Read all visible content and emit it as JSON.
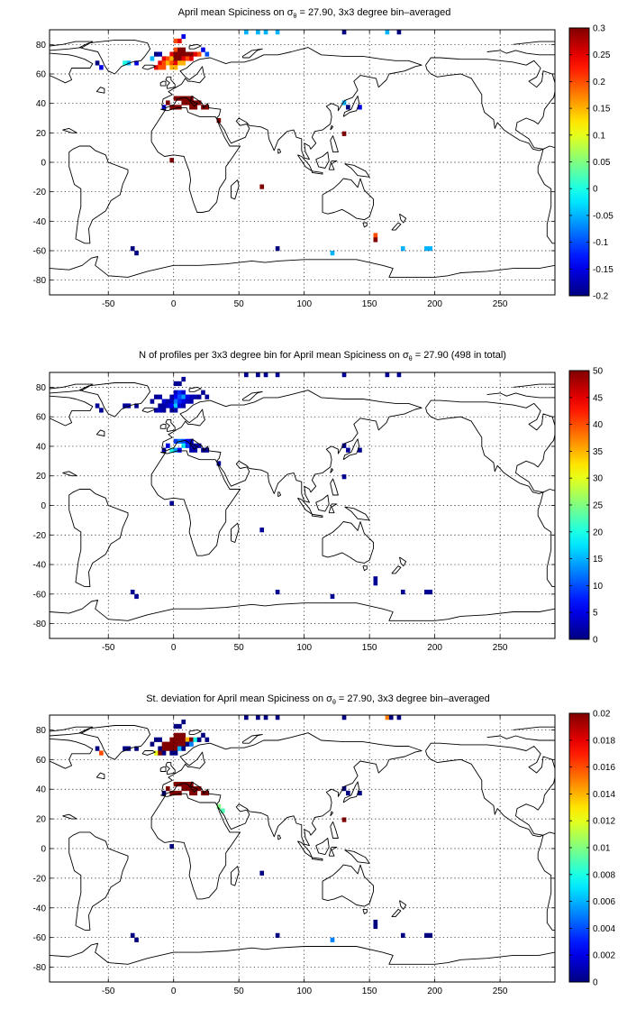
{
  "charts": [
    {
      "title_parts": [
        "April mean Spiciness on ",
        "σ",
        "θ",
        " = 27.90, 3x3 degree bin–averaged"
      ],
      "colorbar": {
        "min": -0.2,
        "max": 0.3,
        "ticks": [
          "0.3",
          "0.25",
          "0.2",
          "0.15",
          "0.1",
          "0.05",
          "0",
          "-0.05",
          "-0.1",
          "-0.15",
          "-0.2"
        ]
      }
    },
    {
      "title_parts": [
        "N of profiles per 3x3 degree bin for April mean Spiciness on ",
        "σ",
        "θ",
        " = 27.90 (498 in total)"
      ],
      "colorbar": {
        "min": 0,
        "max": 50,
        "ticks": [
          "50",
          "45",
          "40",
          "35",
          "30",
          "25",
          "20",
          "15",
          "10",
          "5",
          "0"
        ]
      }
    },
    {
      "title_parts": [
        "St. deviation for April mean Spiciness on ",
        "σ",
        "θ",
        " = 27.90, 3x3 degree bin–averaged"
      ],
      "colorbar": {
        "min": 0,
        "max": 0.02,
        "ticks": [
          "0.02",
          "0.018",
          "0.016",
          "0.014",
          "0.012",
          "0.01",
          "0.008",
          "0.006",
          "0.004",
          "0.002",
          "0"
        ]
      }
    }
  ],
  "chart_data": [
    {
      "type": "heatmap",
      "title": "April mean Spiciness on σθ = 27.90, 3x3 degree bin–averaged",
      "xlabel": "",
      "ylabel": "",
      "xlim": [
        -95,
        292
      ],
      "ylim": [
        -90,
        90
      ],
      "xticks": [
        -50,
        0,
        50,
        100,
        150,
        200,
        250
      ],
      "yticks": [
        80,
        60,
        40,
        20,
        0,
        -20,
        -40,
        -60,
        -80
      ],
      "grid": true,
      "colormap": "jet",
      "clim": [
        -0.2,
        0.3
      ],
      "cells": [
        [
          0,
          75,
          0.2
        ],
        [
          3,
          75,
          0.3
        ],
        [
          6,
          75,
          0.3
        ],
        [
          -3,
          72,
          0.25
        ],
        [
          0,
          72,
          0.3
        ],
        [
          3,
          72,
          0.3
        ],
        [
          6,
          72,
          0.3
        ],
        [
          9,
          72,
          0.3
        ],
        [
          12,
          72,
          0.3
        ],
        [
          15,
          72,
          0.25
        ],
        [
          18,
          72,
          0.2
        ],
        [
          -9,
          69,
          0.25
        ],
        [
          -6,
          69,
          0.2
        ],
        [
          -3,
          69,
          0.15
        ],
        [
          0,
          69,
          0.3
        ],
        [
          3,
          69,
          0.3
        ],
        [
          6,
          69,
          0.25
        ],
        [
          9,
          69,
          0.2
        ],
        [
          12,
          69,
          0.25
        ],
        [
          -12,
          66,
          0.25
        ],
        [
          -9,
          66,
          0.2
        ],
        [
          -6,
          66,
          0.15
        ],
        [
          -3,
          66,
          0.2
        ],
        [
          0,
          66,
          0.25
        ],
        [
          3,
          66,
          0.15
        ],
        [
          6,
          66,
          0.15
        ],
        [
          -15,
          63,
          0.25
        ],
        [
          -12,
          63,
          0.2
        ],
        [
          -9,
          63,
          0.2
        ],
        [
          -3,
          63,
          0.15
        ],
        [
          0,
          63,
          0.15
        ],
        [
          -15,
          72,
          -0.2
        ],
        [
          -12,
          72,
          -0.18
        ],
        [
          21,
          75,
          -0.15
        ],
        [
          24,
          72,
          -0.1
        ],
        [
          -18,
          69,
          -0.05
        ],
        [
          -30,
          66,
          -0.15
        ],
        [
          -36,
          66,
          -0.05
        ],
        [
          -39,
          66,
          0.0
        ],
        [
          -57,
          63,
          -0.15
        ],
        [
          -60,
          66,
          -0.2
        ],
        [
          0,
          81,
          0.2
        ],
        [
          3,
          81,
          0.25
        ],
        [
          6,
          84,
          -0.15
        ],
        [
          0,
          42,
          0.3
        ],
        [
          3,
          42,
          0.3
        ],
        [
          6,
          42,
          0.3
        ],
        [
          9,
          42,
          0.3
        ],
        [
          12,
          42,
          0.3
        ],
        [
          6,
          39,
          0.3
        ],
        [
          9,
          39,
          0.3
        ],
        [
          12,
          39,
          0.3
        ],
        [
          15,
          39,
          0.3
        ],
        [
          18,
          39,
          0.3
        ],
        [
          -3,
          36,
          0.3
        ],
        [
          0,
          36,
          0.3
        ],
        [
          3,
          36,
          0.3
        ],
        [
          12,
          36,
          0.3
        ],
        [
          15,
          36,
          0.3
        ],
        [
          21,
          36,
          0.3
        ],
        [
          24,
          36,
          0.3
        ],
        [
          -6,
          39,
          0.3
        ],
        [
          -9,
          36,
          -0.15
        ],
        [
          33,
          27,
          0.3
        ],
        [
          -3,
          0,
          0.3
        ],
        [
          66,
          -18,
          0.3
        ],
        [
          129,
          39,
          -0.05
        ],
        [
          132,
          36,
          -0.2
        ],
        [
          141,
          36,
          -0.15
        ],
        [
          129,
          18,
          0.3
        ],
        [
          54,
          87,
          -0.05
        ],
        [
          63,
          87,
          -0.05
        ],
        [
          69,
          87,
          -0.05
        ],
        [
          78,
          87,
          -0.05
        ],
        [
          129,
          87,
          -0.2
        ],
        [
          162,
          87,
          -0.05
        ],
        [
          171,
          87,
          -0.2
        ],
        [
          -33,
          -60,
          -0.2
        ],
        [
          -30,
          -63,
          -0.2
        ],
        [
          78,
          -60,
          -0.2
        ],
        [
          120,
          -63,
          -0.05
        ],
        [
          153,
          -51,
          0.2
        ],
        [
          153,
          -54,
          0.3
        ],
        [
          174,
          -60,
          -0.05
        ],
        [
          192,
          -60,
          -0.05
        ],
        [
          195,
          -60,
          -0.05
        ]
      ]
    },
    {
      "type": "heatmap",
      "title": "N of profiles per 3x3 degree bin for April mean Spiciness on σθ = 27.90 (498 in total)",
      "xlabel": "",
      "ylabel": "",
      "xlim": [
        -95,
        292
      ],
      "ylim": [
        -90,
        90
      ],
      "xticks": [
        -50,
        0,
        50,
        100,
        150,
        200,
        250
      ],
      "yticks": [
        80,
        60,
        40,
        20,
        0,
        -20,
        -40,
        -60,
        -80
      ],
      "grid": true,
      "colormap": "jet",
      "clim": [
        0,
        50
      ],
      "cells": [
        [
          0,
          75,
          3
        ],
        [
          3,
          75,
          8
        ],
        [
          6,
          75,
          4
        ],
        [
          -3,
          72,
          2
        ],
        [
          0,
          72,
          6
        ],
        [
          3,
          72,
          10
        ],
        [
          6,
          72,
          14
        ],
        [
          9,
          72,
          5
        ],
        [
          12,
          72,
          3
        ],
        [
          15,
          72,
          2
        ],
        [
          18,
          72,
          1
        ],
        [
          -9,
          69,
          4
        ],
        [
          -6,
          69,
          2
        ],
        [
          -3,
          69,
          3
        ],
        [
          0,
          69,
          12
        ],
        [
          3,
          69,
          8
        ],
        [
          6,
          69,
          5
        ],
        [
          9,
          69,
          3
        ],
        [
          12,
          69,
          2
        ],
        [
          -12,
          66,
          1
        ],
        [
          -9,
          66,
          2
        ],
        [
          -6,
          66,
          3
        ],
        [
          -3,
          66,
          6
        ],
        [
          0,
          66,
          16
        ],
        [
          3,
          66,
          4
        ],
        [
          6,
          66,
          2
        ],
        [
          -15,
          63,
          2
        ],
        [
          -12,
          63,
          3
        ],
        [
          -9,
          63,
          1
        ],
        [
          -3,
          63,
          1
        ],
        [
          0,
          63,
          2
        ],
        [
          -15,
          72,
          1
        ],
        [
          -12,
          72,
          2
        ],
        [
          21,
          75,
          1
        ],
        [
          24,
          72,
          1
        ],
        [
          -18,
          69,
          1
        ],
        [
          -30,
          66,
          1
        ],
        [
          -36,
          66,
          2
        ],
        [
          -39,
          66,
          1
        ],
        [
          -57,
          63,
          1
        ],
        [
          -60,
          66,
          1
        ],
        [
          0,
          81,
          1
        ],
        [
          3,
          81,
          1
        ],
        [
          6,
          84,
          1
        ],
        [
          0,
          42,
          9
        ],
        [
          3,
          42,
          12
        ],
        [
          6,
          42,
          10
        ],
        [
          9,
          42,
          6
        ],
        [
          12,
          42,
          3
        ],
        [
          6,
          39,
          18
        ],
        [
          9,
          39,
          9
        ],
        [
          12,
          39,
          4
        ],
        [
          15,
          39,
          3
        ],
        [
          18,
          39,
          2
        ],
        [
          -3,
          36,
          20
        ],
        [
          0,
          36,
          14
        ],
        [
          3,
          36,
          6
        ],
        [
          12,
          36,
          2
        ],
        [
          15,
          36,
          2
        ],
        [
          21,
          36,
          1
        ],
        [
          24,
          36,
          1
        ],
        [
          -6,
          39,
          5
        ],
        [
          -9,
          36,
          2
        ],
        [
          33,
          27,
          1
        ],
        [
          -3,
          0,
          1
        ],
        [
          66,
          -18,
          1
        ],
        [
          129,
          39,
          1
        ],
        [
          132,
          36,
          1
        ],
        [
          141,
          36,
          1
        ],
        [
          129,
          18,
          1
        ],
        [
          54,
          87,
          1
        ],
        [
          63,
          87,
          1
        ],
        [
          69,
          87,
          1
        ],
        [
          78,
          87,
          1
        ],
        [
          129,
          87,
          1
        ],
        [
          162,
          87,
          1
        ],
        [
          171,
          87,
          1
        ],
        [
          -33,
          -60,
          1
        ],
        [
          -30,
          -63,
          1
        ],
        [
          78,
          -60,
          1
        ],
        [
          120,
          -63,
          1
        ],
        [
          153,
          -51,
          1
        ],
        [
          153,
          -54,
          1
        ],
        [
          174,
          -60,
          1
        ],
        [
          192,
          -60,
          1
        ],
        [
          195,
          -60,
          1
        ]
      ]
    },
    {
      "type": "heatmap",
      "title": "St. deviation for April mean Spiciness on σθ = 27.90, 3x3 degree bin–averaged",
      "xlabel": "",
      "ylabel": "",
      "xlim": [
        -95,
        292
      ],
      "ylim": [
        -90,
        90
      ],
      "xticks": [
        -50,
        0,
        50,
        100,
        150,
        200,
        250
      ],
      "yticks": [
        80,
        60,
        40,
        20,
        0,
        -20,
        -40,
        -60,
        -80
      ],
      "grid": true,
      "colormap": "jet",
      "clim": [
        0,
        0.02
      ],
      "cells": [
        [
          0,
          75,
          0.02
        ],
        [
          3,
          75,
          0.02
        ],
        [
          6,
          75,
          0.02
        ],
        [
          -3,
          72,
          0.02
        ],
        [
          0,
          72,
          0.02
        ],
        [
          3,
          72,
          0.02
        ],
        [
          6,
          72,
          0.02
        ],
        [
          9,
          72,
          0.014
        ],
        [
          12,
          72,
          0.02
        ],
        [
          15,
          72,
          0.008
        ],
        [
          18,
          72,
          0.0
        ],
        [
          -9,
          69,
          0.02
        ],
        [
          -6,
          69,
          0.02
        ],
        [
          -3,
          69,
          0.02
        ],
        [
          0,
          69,
          0.02
        ],
        [
          3,
          69,
          0.02
        ],
        [
          6,
          69,
          0.02
        ],
        [
          9,
          69,
          0.0
        ],
        [
          12,
          69,
          0.005
        ],
        [
          -12,
          66,
          0.0
        ],
        [
          -9,
          66,
          0.02
        ],
        [
          -6,
          66,
          0.02
        ],
        [
          -3,
          66,
          0.02
        ],
        [
          0,
          66,
          0.02
        ],
        [
          3,
          66,
          0.006
        ],
        [
          6,
          66,
          0.0
        ],
        [
          -15,
          63,
          0.012
        ],
        [
          -12,
          63,
          0.02
        ],
        [
          -9,
          63,
          0.0
        ],
        [
          -3,
          63,
          0.0
        ],
        [
          0,
          63,
          0.0
        ],
        [
          -15,
          72,
          0.0
        ],
        [
          -12,
          72,
          0.0
        ],
        [
          21,
          75,
          0.0
        ],
        [
          24,
          72,
          0.0
        ],
        [
          -18,
          69,
          0.0
        ],
        [
          -30,
          66,
          0.0
        ],
        [
          -36,
          66,
          0.0
        ],
        [
          -39,
          66,
          0.0
        ],
        [
          -57,
          63,
          0.016
        ],
        [
          -60,
          66,
          0.0
        ],
        [
          0,
          81,
          0.0
        ],
        [
          3,
          81,
          0.0
        ],
        [
          6,
          84,
          0.0
        ],
        [
          0,
          42,
          0.02
        ],
        [
          3,
          42,
          0.02
        ],
        [
          6,
          42,
          0.02
        ],
        [
          9,
          42,
          0.02
        ],
        [
          12,
          42,
          0.02
        ],
        [
          6,
          39,
          0.02
        ],
        [
          9,
          39,
          0.02
        ],
        [
          12,
          39,
          0.02
        ],
        [
          15,
          39,
          0.02
        ],
        [
          18,
          39,
          0.02
        ],
        [
          -3,
          36,
          0.02
        ],
        [
          0,
          36,
          0.02
        ],
        [
          3,
          36,
          0.02
        ],
        [
          12,
          36,
          0.02
        ],
        [
          15,
          36,
          0.02
        ],
        [
          21,
          36,
          0.02
        ],
        [
          24,
          36,
          0.02
        ],
        [
          -6,
          39,
          0.02
        ],
        [
          -9,
          36,
          0.0
        ],
        [
          33,
          27,
          0.01
        ],
        [
          36,
          24,
          0.009
        ],
        [
          -3,
          0,
          0.0
        ],
        [
          66,
          -18,
          0.0
        ],
        [
          129,
          39,
          0.0
        ],
        [
          132,
          36,
          0.0
        ],
        [
          141,
          36,
          0.0
        ],
        [
          129,
          18,
          0.02
        ],
        [
          54,
          87,
          0.0
        ],
        [
          63,
          87,
          0.0
        ],
        [
          69,
          87,
          0.0
        ],
        [
          78,
          87,
          0.0
        ],
        [
          129,
          87,
          0.0
        ],
        [
          162,
          87,
          0.015
        ],
        [
          165,
          87,
          0.0
        ],
        [
          171,
          87,
          0.0
        ],
        [
          -33,
          -60,
          0.0
        ],
        [
          -30,
          -63,
          0.0
        ],
        [
          78,
          -60,
          0.0
        ],
        [
          120,
          -63,
          0.005
        ],
        [
          153,
          -51,
          0.0
        ],
        [
          153,
          -54,
          0.0
        ],
        [
          174,
          -60,
          0.0
        ],
        [
          192,
          -60,
          0.0
        ],
        [
          195,
          -60,
          0.0
        ]
      ]
    }
  ]
}
